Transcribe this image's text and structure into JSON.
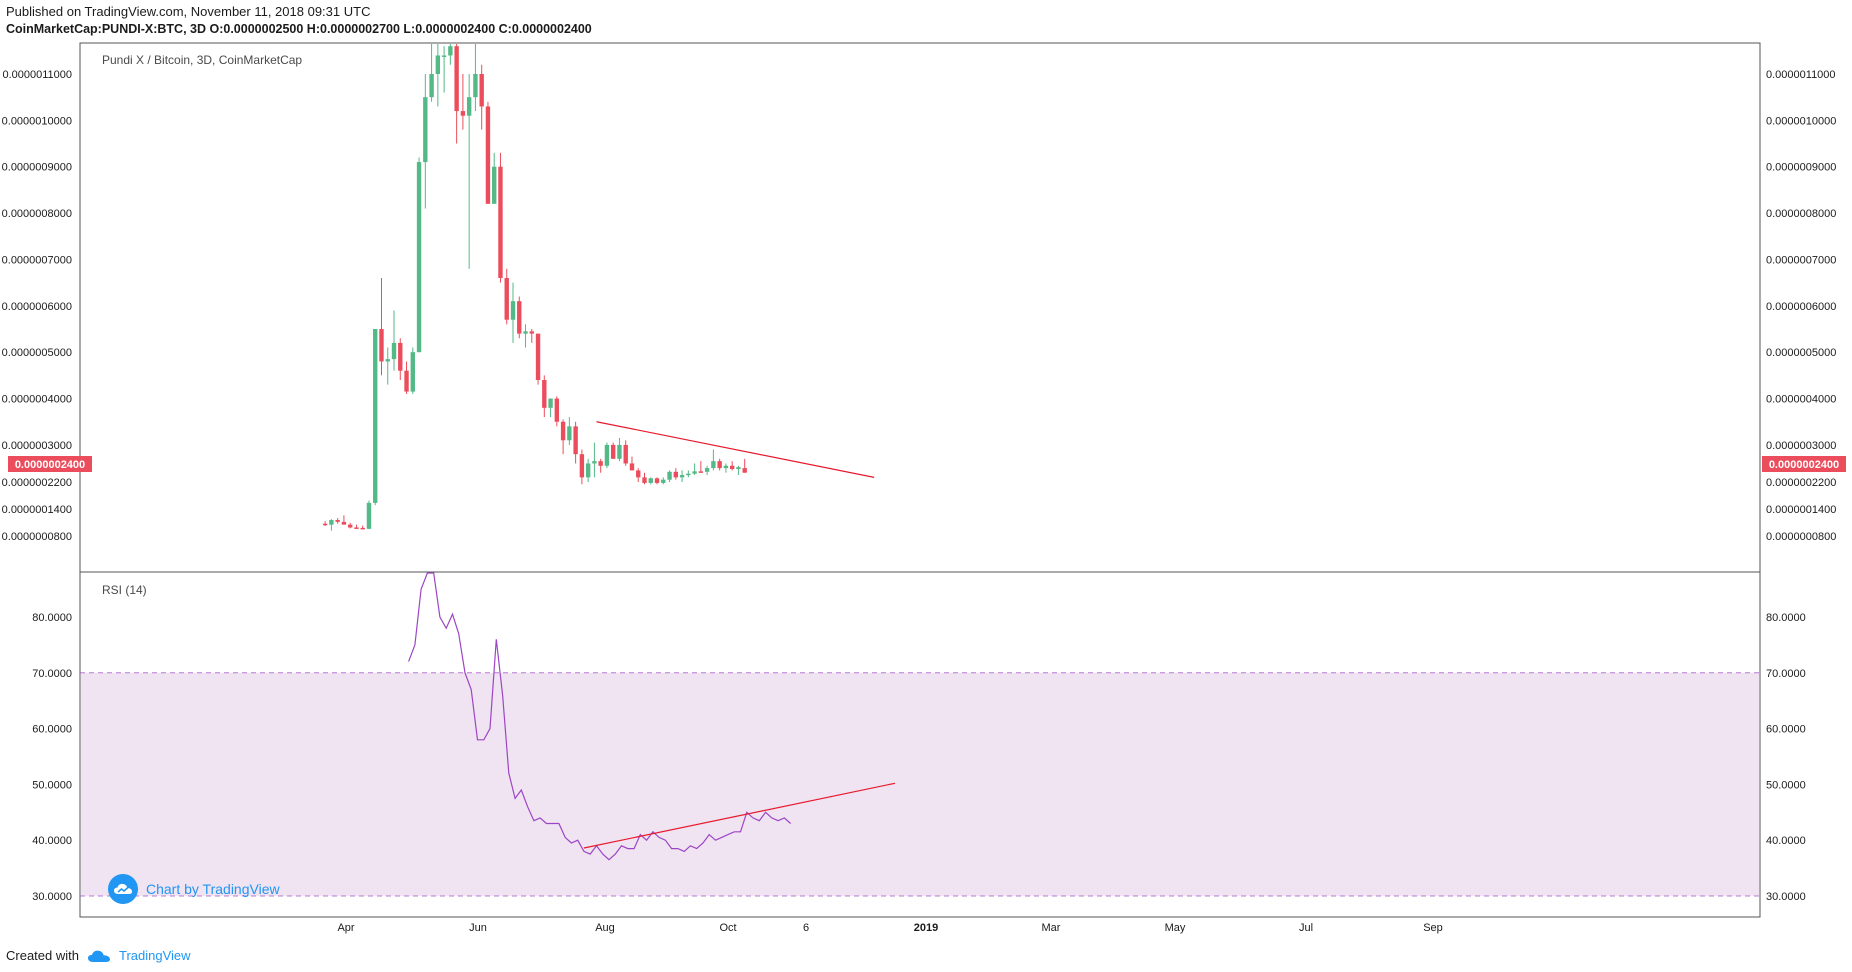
{
  "header": {
    "published": "Published on TradingView.com, November 11, 2018 09:31 UTC",
    "symbol": "CoinMarketCap:PUNDI-X:BTC, 3D",
    "ohlc": "O:0.0000002500 H:0.0000002700 L:0.0000002400 C:0.0000002400"
  },
  "footer": {
    "created_with": "Created with",
    "brand": "TradingView"
  },
  "watermark": "Chart by TradingView",
  "colors": {
    "up": "#53b987",
    "down": "#eb4d5c",
    "rsi": "#9c46c4",
    "rsi_band": "#f0e3f2",
    "trend": "#e8192c",
    "band_line": "#9c46c4"
  },
  "chart_data": [
    {
      "type": "candlestick",
      "title": "Pundi X / Bitcoin, 3D, CoinMarketCap",
      "price_label": "0.0000002400",
      "y_ticks": [
        "0.0000011000",
        "0.0000010000",
        "0.0000009000",
        "0.0000008000",
        "0.0000007000",
        "0.0000006000",
        "0.0000005000",
        "0.0000004000",
        "0.0000003000",
        "0.0000002200",
        "0.0000001400",
        "0.0000000800"
      ],
      "x_ticks": [
        "Apr",
        "Jun",
        "Aug",
        "Oct",
        "6",
        "2019",
        "Mar",
        "May",
        "Jul",
        "Sep"
      ],
      "candles": [
        [
          1.3e-07,
          1.35e-07,
          1.25e-07,
          1.28e-07
        ],
        [
          1.28e-07,
          1.4e-07,
          1.15e-07,
          1.38e-07
        ],
        [
          1.38e-07,
          1.42e-07,
          1.3e-07,
          1.34e-07
        ],
        [
          1.34e-07,
          1.48e-07,
          1.3e-07,
          1.28e-07
        ],
        [
          1.28e-07,
          1.32e-07,
          1.2e-07,
          1.22e-07
        ],
        [
          1.22e-07,
          1.28e-07,
          1.2e-07,
          1.21e-07
        ],
        [
          1.21e-07,
          1.26e-07,
          1.18e-07,
          1.19e-07
        ],
        [
          1.19e-07,
          1.8e-07,
          1.18e-07,
          1.75e-07
        ],
        [
          1.75e-07,
          5.5e-07,
          1.7e-07,
          5.5e-07
        ],
        [
          5.5e-07,
          6.6e-07,
          4.5e-07,
          4.8e-07
        ],
        [
          4.8e-07,
          5.1e-07,
          4.3e-07,
          4.85e-07
        ],
        [
          4.85e-07,
          5.9e-07,
          4.6e-07,
          5.2e-07
        ],
        [
          5.2e-07,
          5.3e-07,
          4.4e-07,
          4.6e-07
        ],
        [
          4.6e-07,
          4.8e-07,
          4.1e-07,
          4.15e-07
        ],
        [
          4.15e-07,
          5.1e-07,
          4.1e-07,
          5e-07
        ],
        [
          5e-07,
          9.2e-07,
          5e-07,
          9.1e-07
        ],
        [
          9.1e-07,
          1.1e-06,
          8.1e-07,
          1.05e-06
        ],
        [
          1.05e-06,
          1.2e-06,
          1.04e-06,
          1.1e-06
        ],
        [
          1.1e-06,
          1.18e-06,
          1.03e-06,
          1.14e-06
        ],
        [
          1.14e-06,
          1.16e-06,
          1.06e-06,
          1.14e-06
        ],
        [
          1.14e-06,
          1.18e-06,
          1.12e-06,
          1.16e-06
        ],
        [
          1.16e-06,
          1.17e-06,
          9.5e-07,
          1.02e-06
        ],
        [
          1.02e-06,
          1.1e-06,
          9.8e-07,
          1.01e-06
        ],
        [
          1.01e-06,
          1.1e-06,
          6.8e-07,
          1.05e-06
        ],
        [
          1.05e-06,
          1.17e-06,
          1.02e-06,
          1.1e-06
        ],
        [
          1.1e-06,
          1.12e-06,
          9.8e-07,
          1.03e-06
        ],
        [
          1.03e-06,
          1.04e-06,
          8.2e-07,
          8.2e-07
        ],
        [
          8.2e-07,
          9.3e-07,
          8.2e-07,
          9e-07
        ],
        [
          9e-07,
          9.3e-07,
          6.5e-07,
          6.6e-07
        ],
        [
          6.6e-07,
          6.8e-07,
          5.6e-07,
          5.7e-07
        ],
        [
          5.7e-07,
          6.5e-07,
          5.2e-07,
          6.1e-07
        ],
        [
          6.1e-07,
          6.2e-07,
          5.3e-07,
          5.4e-07
        ],
        [
          5.4e-07,
          5.6e-07,
          5.1e-07,
          5.45e-07
        ],
        [
          5.45e-07,
          5.5e-07,
          5.2e-07,
          5.4e-07
        ],
        [
          5.4e-07,
          5.4e-07,
          4.3e-07,
          4.4e-07
        ],
        [
          4.4e-07,
          4.5e-07,
          3.6e-07,
          3.8e-07
        ],
        [
          3.8e-07,
          4e-07,
          3.6e-07,
          4e-07
        ],
        [
          4e-07,
          4.05e-07,
          3.4e-07,
          3.5e-07
        ],
        [
          3.5e-07,
          3.55e-07,
          2.8e-07,
          3.1e-07
        ],
        [
          3.1e-07,
          3.6e-07,
          3e-07,
          3.4e-07
        ],
        [
          3.4e-07,
          3.5e-07,
          2.6e-07,
          2.8e-07
        ],
        [
          2.8e-07,
          2.9e-07,
          2.15e-07,
          2.3e-07
        ],
        [
          2.3e-07,
          2.7e-07,
          2.2e-07,
          2.6e-07
        ],
        [
          2.6e-07,
          3.05e-07,
          2.3e-07,
          2.65e-07
        ],
        [
          2.65e-07,
          2.7e-07,
          2.4e-07,
          2.55e-07
        ],
        [
          2.55e-07,
          3.05e-07,
          2.5e-07,
          3e-07
        ],
        [
          3e-07,
          3.05e-07,
          2.7e-07,
          2.7e-07
        ],
        [
          2.7e-07,
          3.15e-07,
          2.65e-07,
          3e-07
        ],
        [
          3e-07,
          3.1e-07,
          2.55e-07,
          2.6e-07
        ],
        [
          2.6e-07,
          2.75e-07,
          2.45e-07,
          2.45e-07
        ],
        [
          2.45e-07,
          2.5e-07,
          2.2e-07,
          2.3e-07
        ],
        [
          2.3e-07,
          2.4e-07,
          2.15e-07,
          2.18e-07
        ],
        [
          2.18e-07,
          2.3e-07,
          2.15e-07,
          2.28e-07
        ],
        [
          2.28e-07,
          2.3e-07,
          2.15e-07,
          2.18e-07
        ],
        [
          2.18e-07,
          2.3e-07,
          2.15e-07,
          2.25e-07
        ],
        [
          2.25e-07,
          2.45e-07,
          2.2e-07,
          2.42e-07
        ],
        [
          2.42e-07,
          2.5e-07,
          2.25e-07,
          2.3e-07
        ],
        [
          2.3e-07,
          2.45e-07,
          2.2e-07,
          2.35e-07
        ],
        [
          2.35e-07,
          2.45e-07,
          2.3e-07,
          2.38e-07
        ],
        [
          2.38e-07,
          2.6e-07,
          2.35e-07,
          2.43e-07
        ],
        [
          2.43e-07,
          2.65e-07,
          2.4e-07,
          2.42e-07
        ],
        [
          2.42e-07,
          2.55e-07,
          2.35e-07,
          2.5e-07
        ],
        [
          2.5e-07,
          2.9e-07,
          2.45e-07,
          2.65e-07
        ],
        [
          2.65e-07,
          2.7e-07,
          2.45e-07,
          2.5e-07
        ],
        [
          2.5e-07,
          2.6e-07,
          2.4e-07,
          2.55e-07
        ],
        [
          2.55e-07,
          2.65e-07,
          2.45e-07,
          2.48e-07
        ],
        [
          2.48e-07,
          2.55e-07,
          2.35e-07,
          2.52e-07
        ],
        [
          2.5e-07,
          2.7e-07,
          2.4e-07,
          2.4e-07
        ]
      ],
      "trendline": {
        "start": [
          "2018-07-30",
          3.5e-07
        ],
        "end": [
          "2018-12-10",
          2.3e-07
        ]
      }
    },
    {
      "type": "line",
      "title": "RSI (14)",
      "y_ticks": [
        "80.0000",
        "70.0000",
        "60.0000",
        "50.0000",
        "40.0000",
        "30.0000"
      ],
      "ylim": [
        27,
        88
      ],
      "overbought": 70,
      "oversold": 30,
      "values": [
        72,
        75,
        85,
        88,
        90,
        80,
        78,
        80.5,
        77,
        70,
        67,
        58,
        58,
        60,
        76,
        66,
        52,
        47.5,
        49,
        46,
        43.5,
        44,
        43,
        43,
        43,
        40.5,
        39.5,
        40,
        38,
        37.5,
        39,
        37.5,
        36.5,
        37.5,
        39,
        38.5,
        38.5,
        41,
        40,
        41.5,
        40.5,
        40,
        38.5,
        38.5,
        38,
        39,
        38.5,
        39.5,
        41,
        40,
        40.5,
        41,
        41.5,
        41.5,
        45,
        44,
        43.5,
        45,
        44,
        43.5,
        44,
        43
      ],
      "trendline": {
        "start": [
          "2018-07-24",
          38.6
        ],
        "end": [
          "2018-12-20",
          50.2
        ]
      }
    }
  ]
}
